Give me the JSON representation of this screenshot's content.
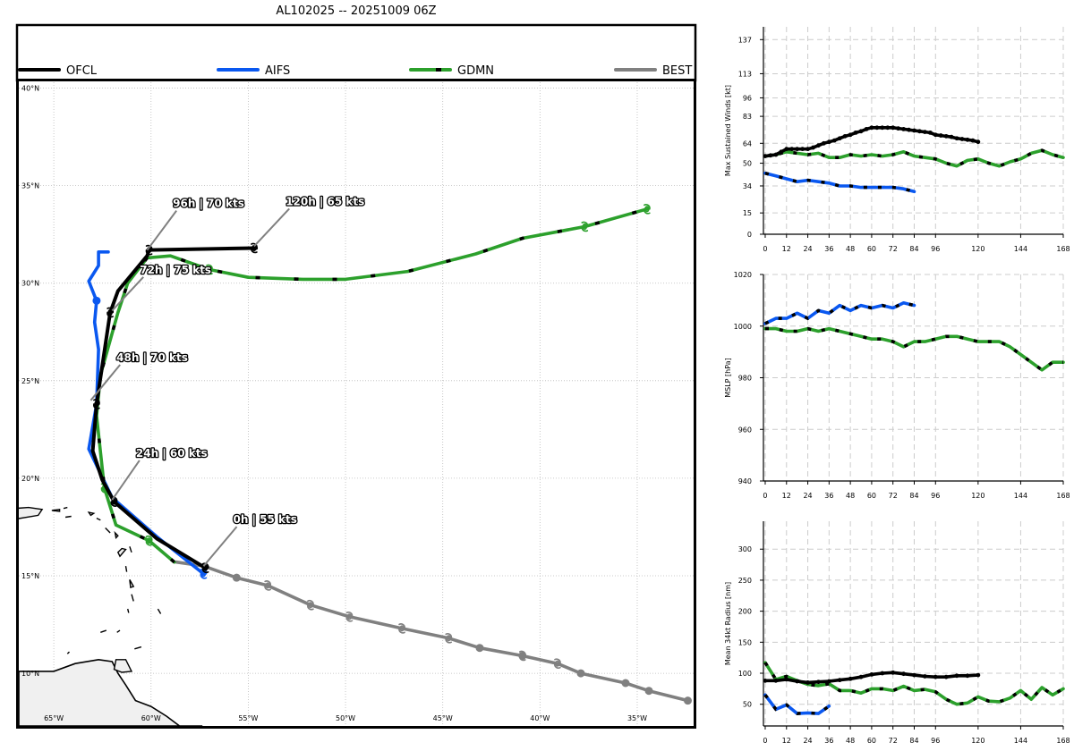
{
  "title": "AL102025 -- 20251009 06Z",
  "colors": {
    "OFCL": "#000000",
    "AIFS": "#0a58f0",
    "GDMN": "#2ca02c",
    "BEST": "#808080"
  },
  "legend": [
    {
      "key": "OFCL",
      "label": "OFCL",
      "dashed": false
    },
    {
      "key": "AIFS",
      "label": "AIFS",
      "dashed": false
    },
    {
      "key": "GDMN",
      "label": "GDMN",
      "dashed": true
    },
    {
      "key": "BEST",
      "label": "BEST",
      "dashed": false
    }
  ],
  "chart_data": [
    {
      "type": "line",
      "name": "track_map",
      "xlim": [
        -66.8,
        -32.1
      ],
      "ylim": [
        7.3,
        40.3
      ],
      "lon_ticks": [
        {
          "v": -65,
          "label": "65°W"
        },
        {
          "v": -60,
          "label": "60°W"
        },
        {
          "v": -55,
          "label": "55°W"
        },
        {
          "v": -50,
          "label": "50°W"
        },
        {
          "v": -45,
          "label": "45°W"
        },
        {
          "v": -40,
          "label": "40°W"
        },
        {
          "v": -35,
          "label": "35°W"
        }
      ],
      "lat_ticks": [
        {
          "v": 10,
          "label": "10°N"
        },
        {
          "v": 15,
          "label": "15°N"
        },
        {
          "v": 20,
          "label": "20°N"
        },
        {
          "v": 25,
          "label": "25°N"
        },
        {
          "v": 30,
          "label": "30°N"
        },
        {
          "v": 35,
          "label": "35°N"
        },
        {
          "v": 40,
          "label": "40°N"
        }
      ],
      "tracks": [
        {
          "key": "BEST",
          "lon": [
            -32.4,
            -34.4,
            -35.6,
            -37.9,
            -39.1,
            -40.9,
            -43.1,
            -44.7,
            -47.1,
            -49.8,
            -51.8,
            -54.0,
            -55.6,
            -57.3,
            -58.7
          ],
          "lat": [
            8.6,
            9.1,
            9.5,
            10.0,
            10.5,
            10.9,
            11.3,
            11.8,
            12.3,
            12.9,
            13.5,
            14.5,
            14.9,
            15.5,
            15.7
          ],
          "storm_idx": [
            4,
            5,
            7,
            8,
            9,
            10,
            11
          ],
          "dot_idx": [
            0,
            1,
            2,
            3,
            5,
            6,
            12
          ]
        },
        {
          "key": "AIFS",
          "lon": [
            -57.3,
            -59.7,
            -62.0,
            -63.2,
            -62.8,
            -62.7,
            -62.9,
            -62.8,
            -63.2,
            -62.7,
            -62.7,
            -62.2
          ],
          "lat": [
            15.1,
            17.0,
            19.0,
            21.5,
            23.8,
            26.6,
            28.0,
            29.1,
            30.1,
            30.9,
            31.6,
            31.6
          ],
          "storm_idx": [
            0
          ],
          "dot_idx": [
            7
          ]
        },
        {
          "key": "GDMN",
          "lon": [
            -58.8,
            -60.1,
            -61.8,
            -62.4,
            -62.8,
            -62.6,
            -61.7,
            -61.2,
            -60.2,
            -59.0,
            -57.0,
            -55.0,
            -52.2,
            -50.0,
            -46.8,
            -43.3,
            -40.9,
            -37.7,
            -34.5
          ],
          "lat": [
            15.7,
            16.8,
            17.6,
            19.5,
            23.2,
            25.3,
            28.5,
            30.0,
            31.3,
            31.4,
            30.7,
            30.3,
            30.2,
            30.2,
            30.6,
            31.5,
            32.3,
            32.9,
            33.8
          ],
          "storm_idx": [
            1,
            3,
            10,
            17,
            18
          ],
          "dot_idx": []
        },
        {
          "key": "OFCL",
          "lon": [
            -57.2,
            -59.7,
            -61.9,
            -62.5,
            -63.0,
            -62.8,
            -62.1,
            -61.7,
            -60.2,
            -60.1,
            -54.7,
            -54.6
          ],
          "lat": [
            15.4,
            16.9,
            18.8,
            19.9,
            21.4,
            23.8,
            28.5,
            29.6,
            31.4,
            31.7,
            31.8,
            31.8
          ],
          "storm_idx": [
            0,
            2,
            5,
            6,
            9,
            10
          ],
          "dot_idx": []
        }
      ],
      "annotations": [
        {
          "text": "0h | 55 kts",
          "lon": -57.3,
          "lat": 15.4,
          "tlon": -55.5,
          "tlat": 17.7
        },
        {
          "text": "24h | 60 kts",
          "lon": -62.0,
          "lat": 18.8,
          "tlon": -60.5,
          "tlat": 21.1
        },
        {
          "text": "48h | 70 kts",
          "lon": -63.1,
          "lat": 23.9,
          "tlon": -61.5,
          "tlat": 26.0
        },
        {
          "text": "72h | 75 kts",
          "lon": -62.0,
          "lat": 28.5,
          "tlon": -60.3,
          "tlat": 30.5
        },
        {
          "text": "96h | 70 kts",
          "lon": -60.2,
          "lat": 31.6,
          "tlon": -58.6,
          "tlat": 33.9
        },
        {
          "text": "120h | 65 kts",
          "lon": -54.7,
          "lat": 31.8,
          "tlon": -52.8,
          "tlat": 34.0
        }
      ],
      "islands": [
        [
          [
            -67,
            17.9
          ],
          [
            -65.8,
            18.1
          ],
          [
            -65.6,
            18.4
          ],
          [
            -66.3,
            18.5
          ],
          [
            -67,
            18.45
          ]
        ],
        [
          [
            -65.1,
            18.35
          ],
          [
            -64.7,
            18.3
          ],
          [
            -64.7,
            18.4
          ]
        ],
        [
          [
            -64.5,
            18.45
          ],
          [
            -64.3,
            18.5
          ]
        ],
        [
          [
            -64.4,
            18.0
          ],
          [
            -64.1,
            18.05
          ]
        ],
        [
          [
            -63.2,
            18.25
          ],
          [
            -62.95,
            18.2
          ],
          [
            -63.1,
            18.1
          ]
        ],
        [
          [
            -62.8,
            17.95
          ],
          [
            -62.6,
            17.85
          ]
        ],
        [
          [
            -62.35,
            17.45
          ],
          [
            -62.1,
            17.2
          ]
        ],
        [
          [
            -61.85,
            17.2
          ],
          [
            -61.7,
            17.05
          ],
          [
            -61.8,
            16.95
          ]
        ],
        [
          [
            -61.5,
            16.4
          ],
          [
            -61.3,
            16.35
          ],
          [
            -61.6,
            16.0
          ],
          [
            -61.7,
            16.2
          ]
        ],
        [
          [
            -61.1,
            16.5
          ],
          [
            -61.0,
            16.2
          ]
        ],
        [
          [
            -61.3,
            15.5
          ],
          [
            -61.25,
            15.2
          ]
        ],
        [
          [
            -61.1,
            14.8
          ],
          [
            -60.9,
            14.45
          ],
          [
            -61.05,
            14.4
          ]
        ],
        [
          [
            -61.0,
            14.05
          ],
          [
            -60.9,
            13.7
          ]
        ],
        [
          [
            -61.2,
            13.3
          ],
          [
            -61.15,
            13.1
          ]
        ],
        [
          [
            -59.65,
            13.3
          ],
          [
            -59.5,
            13.05
          ]
        ],
        [
          [
            -61.75,
            12.1
          ],
          [
            -61.6,
            12.2
          ]
        ],
        [
          [
            -60.85,
            11.25
          ],
          [
            -60.5,
            11.35
          ]
        ],
        [
          [
            -61.8,
            10.7
          ],
          [
            -61.3,
            10.7
          ],
          [
            -61.0,
            10.1
          ],
          [
            -61.5,
            10.05
          ],
          [
            -61.9,
            10.2
          ]
        ],
        [
          [
            -62.3,
            12.2
          ],
          [
            -62.6,
            12.1
          ]
        ],
        [
          [
            -64.3,
            11.0
          ],
          [
            -64.2,
            11.1
          ]
        ]
      ],
      "south_america": [
        [
          -66.8,
          10.1
        ],
        [
          -65.0,
          10.1
        ],
        [
          -63.9,
          10.5
        ],
        [
          -62.7,
          10.7
        ],
        [
          -62.0,
          10.6
        ],
        [
          -61.7,
          10.0
        ],
        [
          -61.3,
          9.4
        ],
        [
          -60.8,
          8.6
        ],
        [
          -60.0,
          8.3
        ],
        [
          -59.2,
          7.8
        ],
        [
          -58.4,
          7.2
        ],
        [
          -57.5,
          6.8
        ],
        [
          -57.4,
          7.3
        ],
        [
          -66.8,
          7.3
        ]
      ]
    },
    {
      "type": "line",
      "name": "intensity_wind",
      "ylabel": "Max Sustained Winds [kt]",
      "xlim": [
        -1,
        168
      ],
      "ylim": [
        0,
        146
      ],
      "x_ticks": [
        0,
        12,
        24,
        36,
        48,
        60,
        72,
        84,
        96,
        120,
        144,
        168
      ],
      "y_ticks": [
        0,
        15,
        34,
        50,
        64,
        83,
        96,
        113,
        137
      ],
      "series": [
        {
          "key": "OFCL",
          "x": [
            0,
            3,
            6,
            9,
            12,
            15,
            18,
            21,
            24,
            27,
            30,
            33,
            36,
            39,
            42,
            45,
            48,
            51,
            54,
            57,
            60,
            63,
            66,
            69,
            72,
            75,
            78,
            81,
            84,
            87,
            90,
            93,
            96,
            99,
            102,
            105,
            108,
            111,
            114,
            117,
            120
          ],
          "y": [
            55,
            55.5,
            56,
            58,
            60,
            60,
            60,
            60,
            60,
            61,
            62.5,
            64,
            65,
            66,
            67.5,
            69,
            70,
            71.5,
            72.5,
            74,
            75,
            75,
            75,
            75,
            75,
            74.5,
            74,
            73.5,
            73,
            72.5,
            72,
            71.5,
            70,
            69.5,
            69,
            68.5,
            67.5,
            67,
            66.5,
            66,
            65
          ]
        },
        {
          "key": "AIFS",
          "x": [
            0,
            6,
            12,
            18,
            24,
            30,
            36,
            42,
            48,
            54,
            60,
            66,
            72,
            78,
            84
          ],
          "y": [
            43,
            41,
            39,
            37,
            38,
            37,
            36,
            34,
            34,
            33,
            33,
            33,
            33,
            32,
            30
          ]
        },
        {
          "key": "GDMN",
          "x": [
            0,
            6,
            12,
            18,
            24,
            30,
            36,
            42,
            48,
            54,
            60,
            66,
            72,
            78,
            84,
            90,
            96,
            102,
            108,
            114,
            120,
            126,
            132,
            138,
            144,
            150,
            156,
            162,
            168
          ],
          "y": [
            55,
            56,
            58,
            57,
            56,
            57,
            54,
            54,
            56,
            55,
            56,
            55,
            56,
            58,
            55,
            54,
            53,
            50,
            48,
            52,
            53,
            50,
            48,
            51,
            53,
            57,
            59,
            56,
            54
          ]
        }
      ]
    },
    {
      "type": "line",
      "name": "intensity_mslp",
      "ylabel": "MSLP [hPa]",
      "xlim": [
        -1,
        168
      ],
      "ylim": [
        940,
        1020
      ],
      "x_ticks": [
        0,
        12,
        24,
        36,
        48,
        60,
        72,
        84,
        96,
        120,
        144,
        168
      ],
      "y_ticks": [
        940,
        960,
        980,
        1000,
        1020
      ],
      "series": [
        {
          "key": "AIFS",
          "x": [
            0,
            6,
            12,
            18,
            24,
            30,
            36,
            42,
            48,
            54,
            60,
            66,
            72,
            78,
            84
          ],
          "y": [
            1001,
            1003,
            1003,
            1005,
            1003,
            1006,
            1005,
            1008,
            1006,
            1008,
            1007,
            1008,
            1007,
            1009,
            1008
          ]
        },
        {
          "key": "GDMN",
          "x": [
            0,
            6,
            12,
            18,
            24,
            30,
            36,
            42,
            48,
            54,
            60,
            66,
            72,
            78,
            84,
            90,
            96,
            102,
            108,
            114,
            120,
            126,
            132,
            138,
            144,
            150,
            156,
            162,
            168
          ],
          "y": [
            999,
            999,
            998,
            998,
            999,
            998,
            999,
            998,
            997,
            996,
            995,
            995,
            994,
            992,
            994,
            994,
            995,
            996,
            996,
            995,
            994,
            994,
            994,
            992,
            989,
            986,
            983,
            986,
            986
          ]
        }
      ]
    },
    {
      "type": "line",
      "name": "radius_34kt",
      "ylabel": "Mean 34kt Radius [nm]",
      "xlim": [
        -1,
        168
      ],
      "ylim": [
        15,
        345
      ],
      "x_ticks": [
        0,
        12,
        24,
        36,
        48,
        60,
        72,
        84,
        96,
        120,
        144,
        168
      ],
      "y_ticks": [
        50,
        100,
        150,
        200,
        250,
        300
      ],
      "series": [
        {
          "key": "OFCL",
          "x": [
            0,
            6,
            12,
            18,
            24,
            30,
            36,
            42,
            48,
            54,
            60,
            66,
            72,
            78,
            84,
            90,
            96,
            102,
            108,
            114,
            120
          ],
          "y": [
            88,
            88,
            90,
            87,
            85,
            86,
            87,
            89,
            91,
            94,
            98,
            100,
            101,
            99,
            97,
            95,
            94,
            94,
            96,
            96,
            97
          ]
        },
        {
          "key": "AIFS",
          "x": [
            0,
            6,
            12,
            18,
            24,
            30,
            36
          ],
          "y": [
            65,
            42,
            49,
            35,
            36,
            35,
            47
          ]
        },
        {
          "key": "GDMN",
          "x": [
            0,
            6,
            12,
            18,
            24,
            30,
            36,
            42,
            48,
            54,
            60,
            66,
            72,
            78,
            84,
            90,
            96,
            102,
            108,
            114,
            120,
            126,
            132,
            138,
            144,
            150,
            156,
            162,
            168
          ],
          "y": [
            117,
            90,
            95,
            88,
            82,
            80,
            83,
            72,
            72,
            68,
            75,
            75,
            72,
            79,
            72,
            74,
            70,
            58,
            50,
            52,
            62,
            55,
            54,
            60,
            72,
            58,
            77,
            65,
            75
          ]
        }
      ]
    }
  ]
}
